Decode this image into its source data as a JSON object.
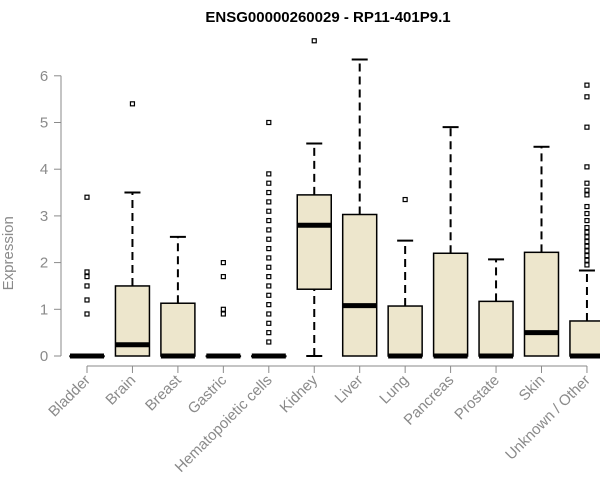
{
  "chart_data": {
    "type": "box",
    "title": "ENSG00000260029 - RP11-401P9.1",
    "xlabel": "",
    "ylabel": "Expression",
    "ylim": [
      0,
      6.8
    ],
    "yticks": [
      0,
      1,
      2,
      3,
      4,
      5,
      6
    ],
    "categories": [
      "Bladder",
      "Brain",
      "Breast",
      "Gastric",
      "Hematopoietic cells",
      "Kidney",
      "Liver",
      "Lung",
      "Pancreas",
      "Prostate",
      "Skin",
      "Unknown / Other"
    ],
    "boxes": [
      {
        "category": "Bladder",
        "min": 0,
        "q1": 0,
        "median": 0,
        "q3": 0,
        "max": 0,
        "outliers": [
          0.9,
          1.2,
          1.5,
          1.7,
          1.8,
          3.4
        ]
      },
      {
        "category": "Brain",
        "min": 0,
        "q1": 0,
        "median": 0.24,
        "q3": 1.5,
        "max": 3.5,
        "outliers": [
          5.4
        ]
      },
      {
        "category": "Breast",
        "min": 0,
        "q1": 0,
        "median": 0,
        "q3": 1.13,
        "max": 2.55,
        "outliers": []
      },
      {
        "category": "Gastric",
        "min": 0,
        "q1": 0,
        "median": 0,
        "q3": 0,
        "max": 0,
        "outliers": [
          0.9,
          1.0,
          1.7,
          2.0
        ]
      },
      {
        "category": "Hematopoietic cells",
        "min": 0,
        "q1": 0,
        "median": 0,
        "q3": 0,
        "max": 0,
        "outliers": [
          0.3,
          0.5,
          0.7,
          0.9,
          1.1,
          1.3,
          1.5,
          1.7,
          1.9,
          2.1,
          2.3,
          2.5,
          2.7,
          2.9,
          3.1,
          3.3,
          3.5,
          3.7,
          3.9,
          5.0
        ]
      },
      {
        "category": "Kidney",
        "min": 0,
        "q1": 1.43,
        "median": 2.8,
        "q3": 3.45,
        "max": 4.55,
        "outliers": [
          6.75
        ]
      },
      {
        "category": "Liver",
        "min": 0,
        "q1": 0,
        "median": 1.08,
        "q3": 3.03,
        "max": 6.35,
        "outliers": []
      },
      {
        "category": "Lung",
        "min": 0,
        "q1": 0,
        "median": 0,
        "q3": 1.07,
        "max": 2.47,
        "outliers": [
          3.35
        ]
      },
      {
        "category": "Pancreas",
        "min": 0,
        "q1": 0,
        "median": 0,
        "q3": 2.2,
        "max": 4.9,
        "outliers": []
      },
      {
        "category": "Prostate",
        "min": 0,
        "q1": 0,
        "median": 0,
        "q3": 1.17,
        "max": 2.07,
        "outliers": []
      },
      {
        "category": "Skin",
        "min": 0,
        "q1": 0,
        "median": 0.5,
        "q3": 2.22,
        "max": 4.48,
        "outliers": []
      },
      {
        "category": "Unknown / Other",
        "min": 0,
        "q1": 0,
        "median": 0,
        "q3": 0.75,
        "max": 1.83,
        "outliers": [
          1.95,
          2.05,
          2.15,
          2.25,
          2.35,
          2.45,
          2.55,
          2.65,
          2.75,
          2.9,
          3.05,
          3.2,
          3.45,
          3.55,
          3.7,
          4.05,
          4.9,
          5.55,
          5.8
        ]
      }
    ],
    "colors": {
      "box_fill": "#ede6cc",
      "stroke": "#000000",
      "axis": "#8a8a8a",
      "text": "#8a8a8a",
      "title": "#000000"
    }
  }
}
